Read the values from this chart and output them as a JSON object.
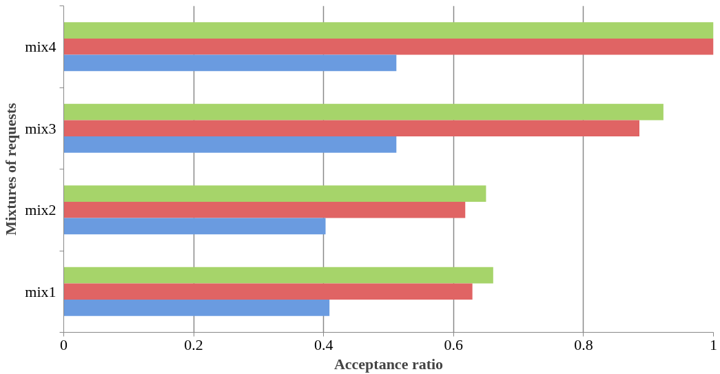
{
  "chart_data": {
    "type": "bar",
    "orientation": "horizontal",
    "xlabel": "Acceptance ratio",
    "ylabel": "Mixtures of requests",
    "categories": [
      "mix4",
      "mix3",
      "mix2",
      "mix1"
    ],
    "series": [
      {
        "color": "#a6d46a",
        "values": [
          1.0,
          0.923,
          0.65,
          0.661
        ]
      },
      {
        "color": "#e06464",
        "values": [
          1.0,
          0.886,
          0.618,
          0.629
        ]
      },
      {
        "color": "#6a9be0",
        "values": [
          0.512,
          0.512,
          0.403,
          0.409
        ]
      }
    ],
    "xlim": [
      0,
      1
    ],
    "xticks": [
      0,
      0.2,
      0.4,
      0.6,
      0.8,
      1
    ],
    "grid": "x"
  }
}
